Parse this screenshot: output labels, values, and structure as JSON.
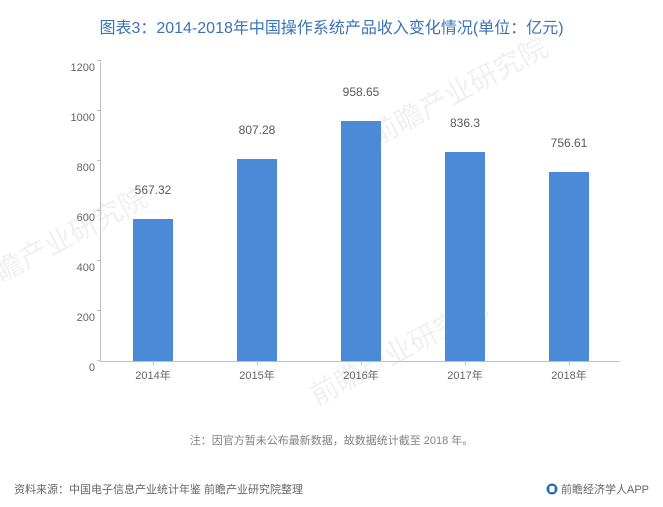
{
  "title": "图表3：2014-2018年中国操作系统产品收入变化情况(单位：亿元)",
  "watermark_text": "前瞻产业研究院",
  "chart": {
    "type": "bar",
    "categories": [
      "2014年",
      "2015年",
      "2016年",
      "2017年",
      "2018年"
    ],
    "values": [
      567.32,
      807.28,
      958.65,
      836.3,
      756.61
    ],
    "value_labels": [
      "567.32",
      "807.28",
      "958.65",
      "836.3",
      "756.61"
    ],
    "bar_color": "#4a8ad6",
    "ylim": [
      0,
      1200
    ],
    "yticks": [
      0,
      200,
      400,
      600,
      800,
      1000,
      1200
    ],
    "axis_color": "#bfbfbf",
    "tick_label_color": "#666666",
    "value_label_color": "#595959",
    "title_color": "#3973b8",
    "background_color": "#ffffff",
    "bar_width_ratio": 0.38,
    "title_fontsize": 16,
    "tick_fontsize": 11,
    "value_fontsize": 12
  },
  "note": "注：因官方暂未公布最新数据，故数据统计截至 2018 年。",
  "source_label": "资料来源：中国电子信息产业统计年鉴 前瞻产业研究院整理",
  "brand_label": "前瞻经济学人APP",
  "brand_logo_color": "#2f6db3"
}
